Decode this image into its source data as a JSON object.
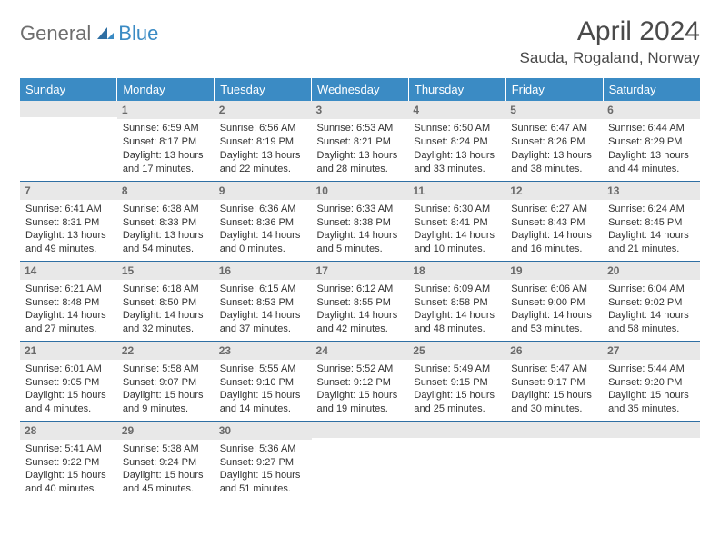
{
  "brand": {
    "part1": "General",
    "part2": "Blue"
  },
  "title": "April 2024",
  "location": "Sauda, Rogaland, Norway",
  "colors": {
    "header_bg": "#3b8bc4",
    "header_text": "#ffffff",
    "daynum_bg": "#e8e8e8",
    "daynum_text": "#6a6a6a",
    "row_border": "#2f6fa3",
    "body_text": "#333333",
    "title_text": "#4a4a4a"
  },
  "dayHeaders": [
    "Sunday",
    "Monday",
    "Tuesday",
    "Wednesday",
    "Thursday",
    "Friday",
    "Saturday"
  ],
  "weeks": [
    [
      null,
      {
        "n": "1",
        "sr": "6:59 AM",
        "ss": "8:17 PM",
        "d": "13 hours and 17 minutes."
      },
      {
        "n": "2",
        "sr": "6:56 AM",
        "ss": "8:19 PM",
        "d": "13 hours and 22 minutes."
      },
      {
        "n": "3",
        "sr": "6:53 AM",
        "ss": "8:21 PM",
        "d": "13 hours and 28 minutes."
      },
      {
        "n": "4",
        "sr": "6:50 AM",
        "ss": "8:24 PM",
        "d": "13 hours and 33 minutes."
      },
      {
        "n": "5",
        "sr": "6:47 AM",
        "ss": "8:26 PM",
        "d": "13 hours and 38 minutes."
      },
      {
        "n": "6",
        "sr": "6:44 AM",
        "ss": "8:29 PM",
        "d": "13 hours and 44 minutes."
      }
    ],
    [
      {
        "n": "7",
        "sr": "6:41 AM",
        "ss": "8:31 PM",
        "d": "13 hours and 49 minutes."
      },
      {
        "n": "8",
        "sr": "6:38 AM",
        "ss": "8:33 PM",
        "d": "13 hours and 54 minutes."
      },
      {
        "n": "9",
        "sr": "6:36 AM",
        "ss": "8:36 PM",
        "d": "14 hours and 0 minutes."
      },
      {
        "n": "10",
        "sr": "6:33 AM",
        "ss": "8:38 PM",
        "d": "14 hours and 5 minutes."
      },
      {
        "n": "11",
        "sr": "6:30 AM",
        "ss": "8:41 PM",
        "d": "14 hours and 10 minutes."
      },
      {
        "n": "12",
        "sr": "6:27 AM",
        "ss": "8:43 PM",
        "d": "14 hours and 16 minutes."
      },
      {
        "n": "13",
        "sr": "6:24 AM",
        "ss": "8:45 PM",
        "d": "14 hours and 21 minutes."
      }
    ],
    [
      {
        "n": "14",
        "sr": "6:21 AM",
        "ss": "8:48 PM",
        "d": "14 hours and 27 minutes."
      },
      {
        "n": "15",
        "sr": "6:18 AM",
        "ss": "8:50 PM",
        "d": "14 hours and 32 minutes."
      },
      {
        "n": "16",
        "sr": "6:15 AM",
        "ss": "8:53 PM",
        "d": "14 hours and 37 minutes."
      },
      {
        "n": "17",
        "sr": "6:12 AM",
        "ss": "8:55 PM",
        "d": "14 hours and 42 minutes."
      },
      {
        "n": "18",
        "sr": "6:09 AM",
        "ss": "8:58 PM",
        "d": "14 hours and 48 minutes."
      },
      {
        "n": "19",
        "sr": "6:06 AM",
        "ss": "9:00 PM",
        "d": "14 hours and 53 minutes."
      },
      {
        "n": "20",
        "sr": "6:04 AM",
        "ss": "9:02 PM",
        "d": "14 hours and 58 minutes."
      }
    ],
    [
      {
        "n": "21",
        "sr": "6:01 AM",
        "ss": "9:05 PM",
        "d": "15 hours and 4 minutes."
      },
      {
        "n": "22",
        "sr": "5:58 AM",
        "ss": "9:07 PM",
        "d": "15 hours and 9 minutes."
      },
      {
        "n": "23",
        "sr": "5:55 AM",
        "ss": "9:10 PM",
        "d": "15 hours and 14 minutes."
      },
      {
        "n": "24",
        "sr": "5:52 AM",
        "ss": "9:12 PM",
        "d": "15 hours and 19 minutes."
      },
      {
        "n": "25",
        "sr": "5:49 AM",
        "ss": "9:15 PM",
        "d": "15 hours and 25 minutes."
      },
      {
        "n": "26",
        "sr": "5:47 AM",
        "ss": "9:17 PM",
        "d": "15 hours and 30 minutes."
      },
      {
        "n": "27",
        "sr": "5:44 AM",
        "ss": "9:20 PM",
        "d": "15 hours and 35 minutes."
      }
    ],
    [
      {
        "n": "28",
        "sr": "5:41 AM",
        "ss": "9:22 PM",
        "d": "15 hours and 40 minutes."
      },
      {
        "n": "29",
        "sr": "5:38 AM",
        "ss": "9:24 PM",
        "d": "15 hours and 45 minutes."
      },
      {
        "n": "30",
        "sr": "5:36 AM",
        "ss": "9:27 PM",
        "d": "15 hours and 51 minutes."
      },
      null,
      null,
      null,
      null
    ]
  ],
  "labels": {
    "sunrise": "Sunrise: ",
    "sunset": "Sunset: ",
    "daylight": "Daylight: "
  }
}
